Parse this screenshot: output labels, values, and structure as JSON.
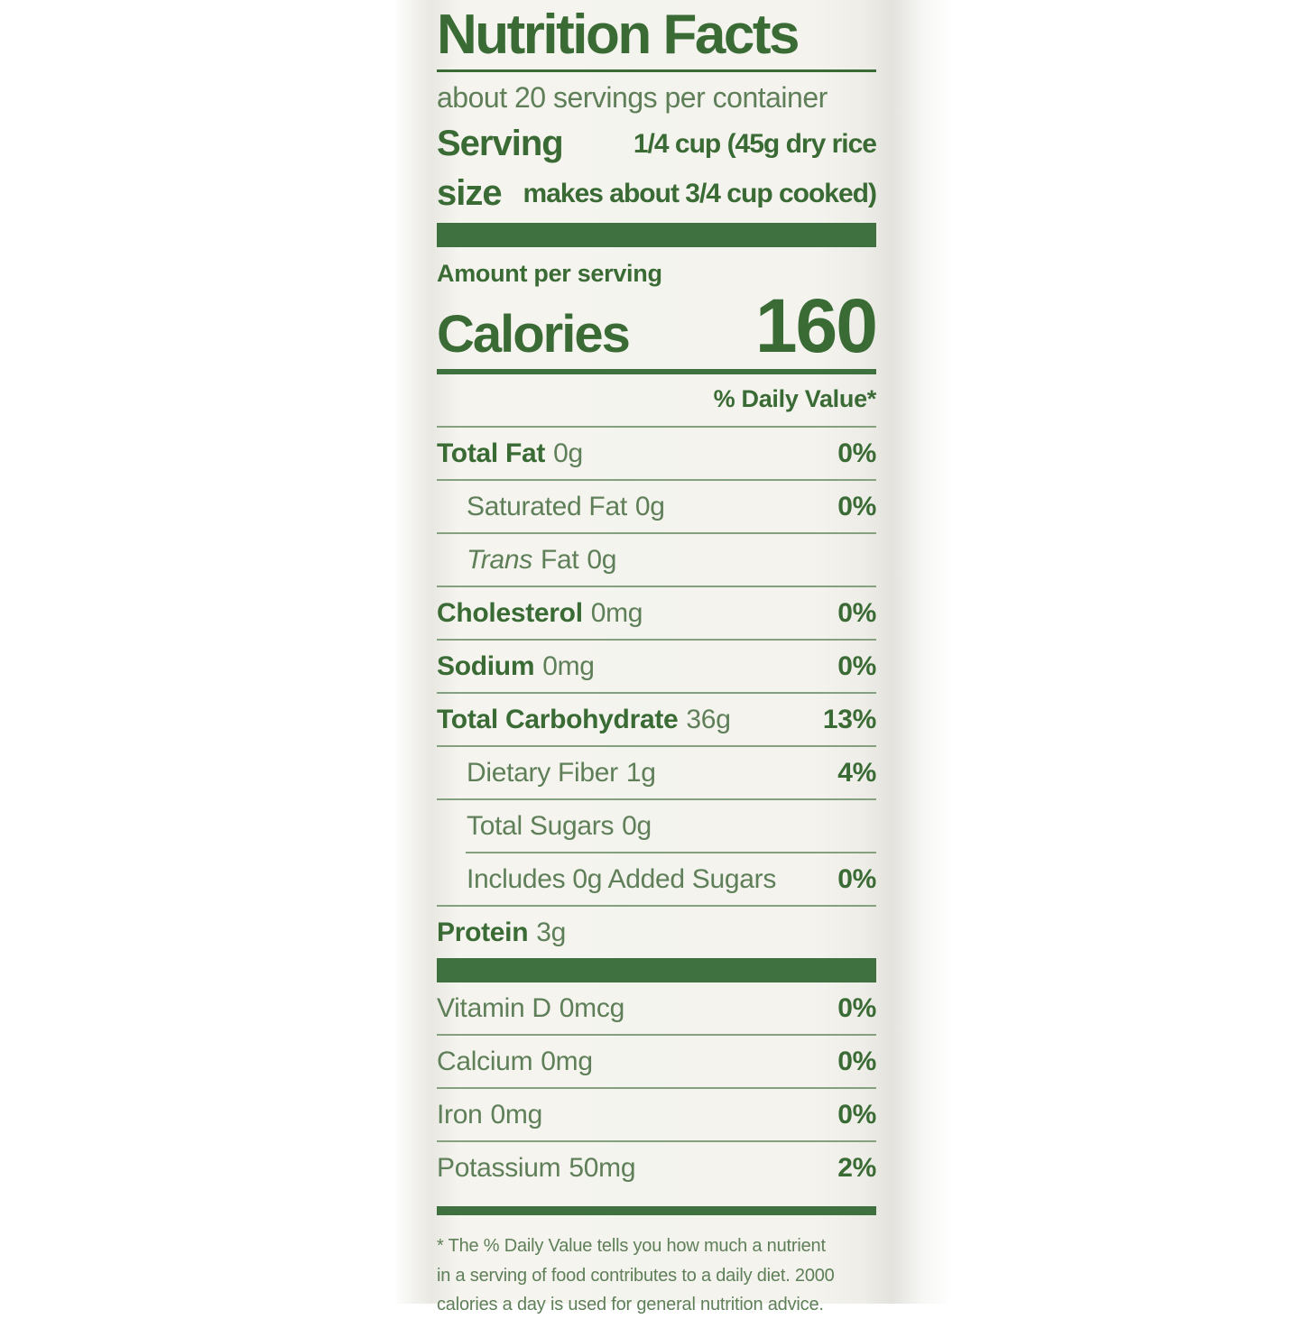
{
  "label": {
    "title": "Nutrition Facts",
    "servings_per_container": "about 20 servings per container",
    "serving_size": {
      "label_line1": "Serving",
      "label_line2": "size",
      "value_line1": "1/4 cup (45g dry rice",
      "value_line2": "makes about 3/4 cup cooked)"
    },
    "amount_per_serving": "Amount per serving",
    "calories": {
      "label": "Calories",
      "value": "160"
    },
    "daily_value_header": "% Daily Value*",
    "rows": [
      {
        "name": "Total Fat",
        "amount": "0g",
        "dv": "0%"
      },
      {
        "name": "Saturated Fat",
        "amount": "0g",
        "dv": "0%"
      },
      {
        "name_italic": "Trans",
        "name_rest": "Fat",
        "amount": "0g",
        "dv": ""
      },
      {
        "name": "Cholesterol",
        "amount": "0mg",
        "dv": "0%"
      },
      {
        "name": "Sodium",
        "amount": "0mg",
        "dv": "0%"
      },
      {
        "name": "Total Carbohydrate",
        "amount": "36g",
        "dv": "13%"
      },
      {
        "name": "Dietary Fiber",
        "amount": "1g",
        "dv": "4%"
      },
      {
        "name": "Total Sugars",
        "amount": "0g",
        "dv": ""
      },
      {
        "name": "Includes 0g Added Sugars",
        "amount": "",
        "dv": "0%"
      },
      {
        "name": "Protein",
        "amount": "3g",
        "dv": ""
      }
    ],
    "micronutrients": [
      {
        "name": "Vitamin D",
        "amount": "0mcg",
        "dv": "0%"
      },
      {
        "name": "Calcium",
        "amount": "0mg",
        "dv": "0%"
      },
      {
        "name": "Iron",
        "amount": "0mg",
        "dv": "0%"
      },
      {
        "name": "Potassium",
        "amount": "50mg",
        "dv": "2%"
      }
    ],
    "footnote_lines": [
      "* The % Daily Value tells you how much a nutrient",
      "in a serving of food contributes to a daily diet. 2000",
      "calories a day is used for general nutrition advice."
    ],
    "colors": {
      "accent_green": "#3a6b35",
      "text_green": "#5e7f58",
      "bar_green": "#3f7040",
      "rule_green": "#84a07e",
      "label_bg": "#f4f3ee"
    }
  }
}
